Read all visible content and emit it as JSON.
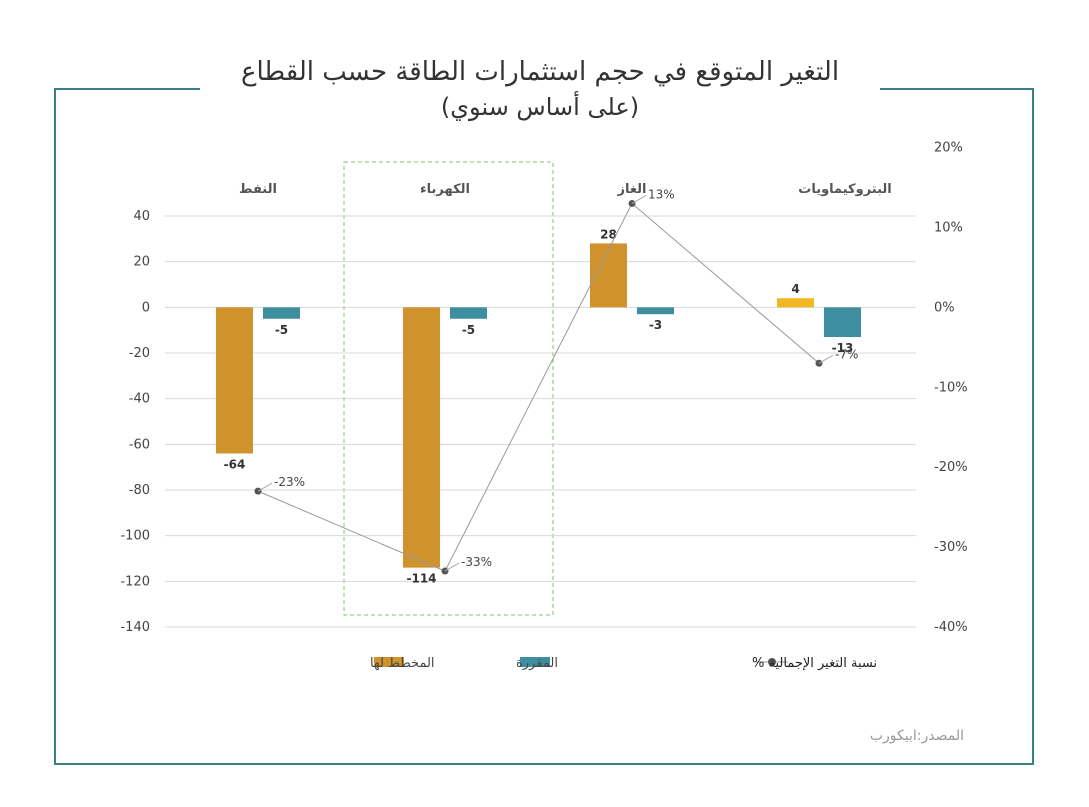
{
  "title": "التغير المتوقع في حجم استثمارات الطاقة حسب القطاع",
  "subtitle": "(على أساس سنوي)",
  "source": "المصدر:ابيكورب",
  "colors": {
    "planned": "#cf922c",
    "committed": "#3d8fa0",
    "planned_highlight": "#f2b824",
    "line": "#999999",
    "marker": "#555555",
    "frame": "#3b7f8c",
    "highlight_box": "#7cc46a"
  },
  "chart_data": {
    "type": "bar",
    "categories": [
      "النفط",
      "الكهرباء",
      "الغاز",
      "البتروكيماويات"
    ],
    "series": [
      {
        "name": "المخطط لها",
        "values": [
          -64,
          -114,
          28,
          4
        ]
      },
      {
        "name": "المقررة",
        "values": [
          -5,
          -5,
          -3,
          -13
        ]
      },
      {
        "name": "نسبة التغير الإجمالية %",
        "type": "line",
        "axis": "right",
        "values": [
          -23,
          -33,
          13,
          -7
        ]
      }
    ],
    "value_labels": {
      "planned": [
        "-64",
        "-114",
        "28",
        "4"
      ],
      "committed": [
        "-5",
        "-5",
        "-3",
        "-13"
      ],
      "total": [
        "-23%",
        "-33%",
        "13%",
        "-7%"
      ]
    },
    "ylim": [
      -140,
      40
    ],
    "yticks": [
      "40",
      "20",
      "0",
      "-20",
      "-40",
      "-60",
      "-80",
      "-100",
      "-120",
      "-140"
    ],
    "y2lim": [
      -40,
      20
    ],
    "y2ticks": [
      "20%",
      "10%",
      "0%",
      "-10%",
      "-20%",
      "-30%",
      "-40%"
    ],
    "highlighted_category": "الكهرباء",
    "legend_position": "bottom",
    "grid": true
  },
  "legend": {
    "planned": "المخطط لها",
    "committed": "المقررة",
    "total": "نسبة التغير الإجمالية %"
  }
}
